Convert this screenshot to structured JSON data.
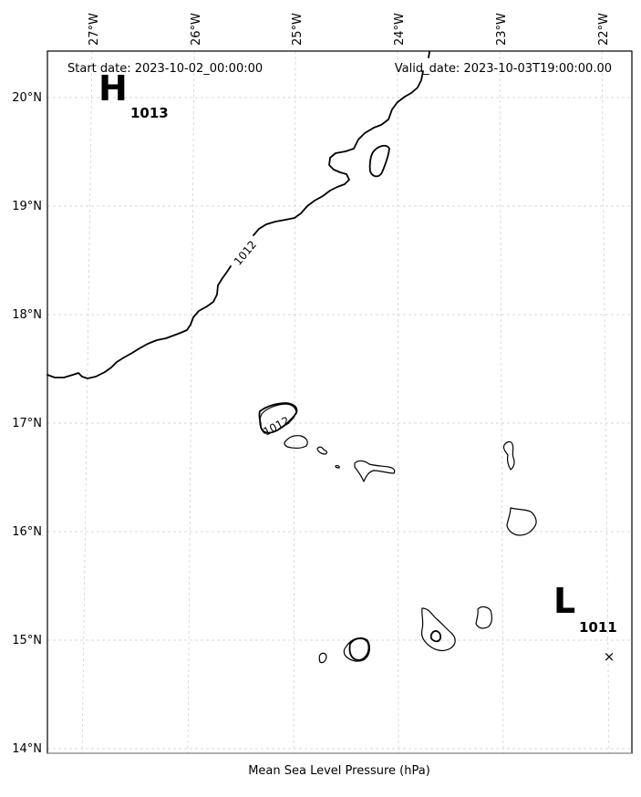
{
  "header": {
    "start_date": "Start date: 2023-10-02_00:00:00",
    "valid_date": "Valid_date: 2023-10-03T19:00:00.00"
  },
  "xlabel": "Mean Sea Level Pressure (hPa)",
  "longitude_ticks": [
    "27°W",
    "26°W",
    "25°W",
    "24°W",
    "23°W",
    "22°W"
  ],
  "latitude_ticks": [
    "20°N",
    "19°N",
    "18°N",
    "17°N",
    "16°N",
    "15°N",
    "14°N"
  ],
  "pressure_centers": [
    {
      "letter": "H",
      "value": "1013"
    },
    {
      "letter": "L",
      "value": "1011"
    }
  ],
  "low_center_marker": "×",
  "contour_labels": [
    "1012",
    "1012"
  ],
  "chart_data": {
    "type": "map",
    "variable": "Mean Sea Level Pressure (hPa)",
    "extent": {
      "lon": [
        -27.33,
        -21.77
      ],
      "lat": [
        13.95,
        20.4
      ]
    },
    "grid": true,
    "isobars": [
      1012
    ],
    "centers": [
      {
        "type": "H",
        "value": 1013
      },
      {
        "type": "L",
        "value": 1011,
        "lon": -22.0,
        "lat": 14.85
      }
    ]
  }
}
